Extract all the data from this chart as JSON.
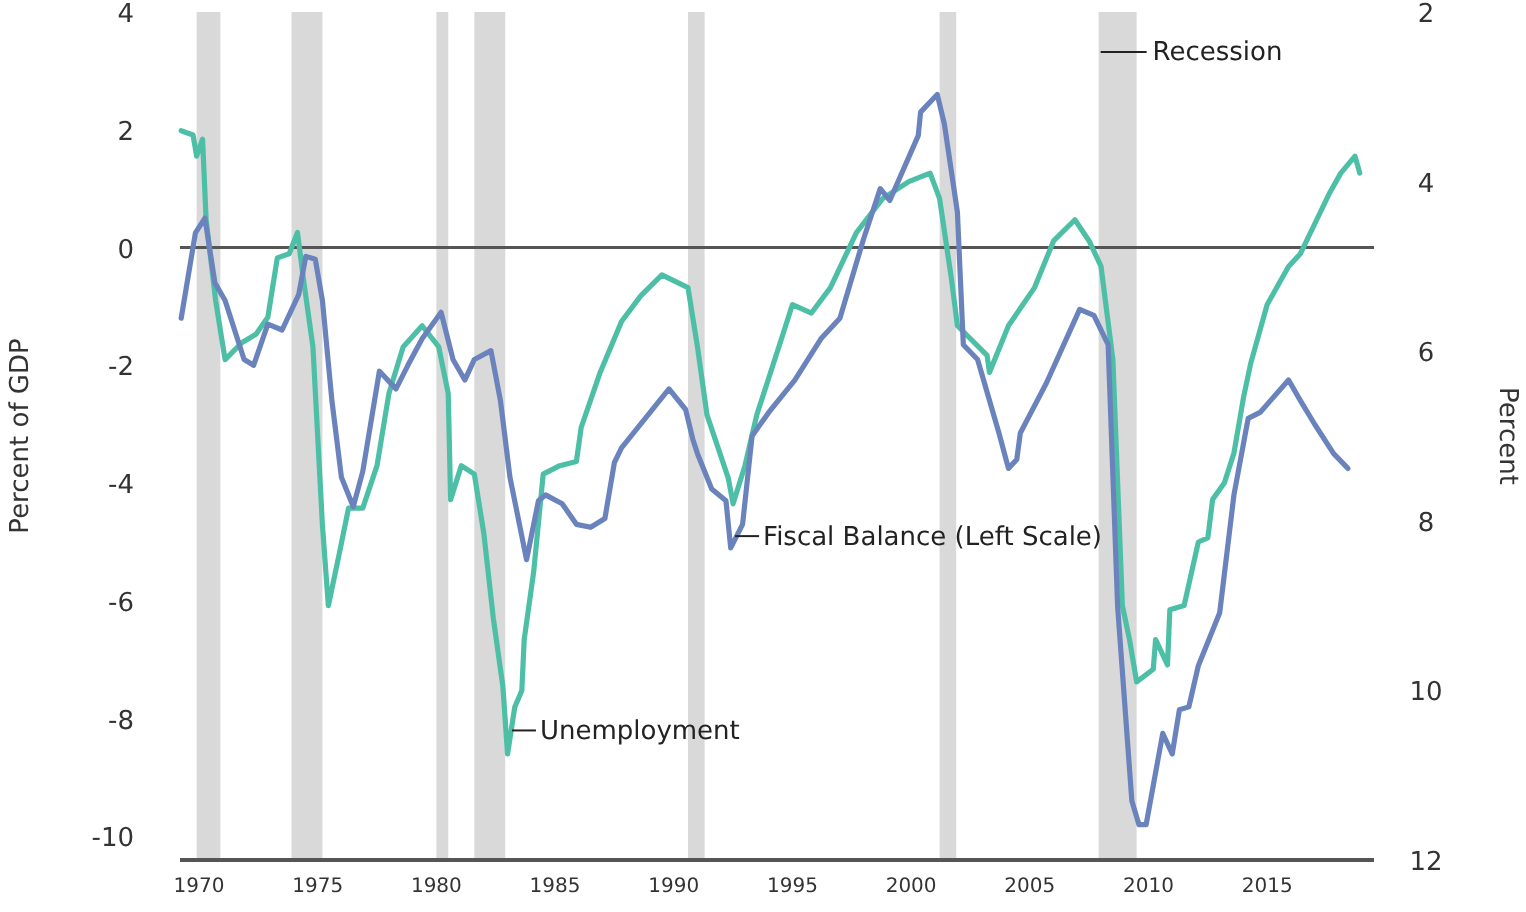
{
  "chart_data": {
    "type": "line",
    "ylabel": "Percent of GDP",
    "y2label": "Percent",
    "xlim": [
      1969.2,
      2019.5
    ],
    "xticks": [
      1970,
      1975,
      1980,
      1985,
      1990,
      1995,
      2000,
      2005,
      2010,
      2015
    ],
    "ylim": [
      -10.4,
      4
    ],
    "yticks": [
      -10,
      -8,
      -6,
      -4,
      -2,
      0,
      2,
      4
    ],
    "y2lim": [
      12,
      2
    ],
    "y2ticks": [
      2,
      4,
      6,
      8,
      10,
      12
    ],
    "series": [
      {
        "color": "#4dbfa7",
        "axis": "y2",
        "x": [
          1969.25,
          1969.75,
          1969.9,
          1970.15,
          1970.3,
          1970.7,
          1971.1,
          1971.8,
          1972.4,
          1972.9,
          1973.3,
          1973.8,
          1974.15,
          1974.4,
          1974.8,
          1975.2,
          1975.45,
          1975.9,
          1976.3,
          1976.9,
          1977.5,
          1978.0,
          1978.6,
          1979.4,
          1980.1,
          1980.5,
          1980.6,
          1981.05,
          1981.6,
          1982.0,
          1982.4,
          1982.8,
          1983.0,
          1983.3,
          1983.6,
          1983.7,
          1984.1,
          1984.5,
          1985.2,
          1985.9,
          1986.1,
          1986.9,
          1987.8,
          1988.6,
          1989.5,
          1990.6,
          1991.0,
          1991.4,
          1992.3,
          1992.5,
          1993.0,
          1993.5,
          1994.6,
          1995.0,
          1995.8,
          1996.6,
          1997.7,
          1998.8,
          1999.9,
          2000.8,
          2001.2,
          2001.7,
          2001.95,
          2003.2,
          2003.3,
          2004.1,
          2005.2,
          2006.0,
          2006.9,
          2007.5,
          2008.0,
          2008.5,
          2008.9,
          2009.2,
          2009.5,
          2010.2,
          2010.3,
          2010.8,
          2010.9,
          2011.5,
          2012.1,
          2012.5,
          2012.7,
          2013.2,
          2013.6,
          2014.0,
          2014.3,
          2015.0,
          2015.9,
          2016.4,
          2017.0,
          2017.6,
          2018.1,
          2018.7,
          2018.9
        ],
        "values": [
          3.4,
          3.45,
          3.7,
          3.5,
          4.45,
          5.4,
          6.1,
          5.9,
          5.8,
          5.6,
          4.9,
          4.85,
          4.6,
          5.15,
          5.95,
          8.05,
          9.0,
          8.4,
          7.85,
          7.85,
          7.35,
          6.5,
          5.95,
          5.7,
          5.95,
          6.5,
          7.75,
          7.35,
          7.45,
          8.15,
          9.15,
          9.95,
          10.75,
          10.2,
          10.0,
          9.4,
          8.6,
          7.45,
          7.35,
          7.3,
          6.9,
          6.25,
          5.65,
          5.35,
          5.1,
          5.25,
          5.95,
          6.75,
          7.5,
          7.8,
          7.35,
          6.75,
          5.8,
          5.45,
          5.55,
          5.25,
          4.6,
          4.2,
          4.0,
          3.9,
          4.2,
          5.15,
          5.7,
          6.05,
          6.25,
          5.7,
          5.25,
          4.7,
          4.45,
          4.7,
          5.0,
          6.1,
          9.0,
          9.4,
          9.9,
          9.75,
          9.4,
          9.7,
          9.05,
          9.0,
          8.25,
          8.2,
          7.75,
          7.55,
          7.2,
          6.55,
          6.15,
          5.45,
          5.0,
          4.85,
          4.5,
          4.15,
          3.9,
          3.7,
          3.9
        ]
      },
      {
        "color": "#6b83bd",
        "x": [
          1969.25,
          1969.85,
          1970.25,
          1970.67,
          1971.1,
          1971.9,
          1972.3,
          1972.9,
          1973.5,
          1974.2,
          1974.5,
          1974.9,
          1975.2,
          1975.6,
          1976.0,
          1976.5,
          1976.9,
          1977.6,
          1978.3,
          1978.8,
          1979.4,
          1980.2,
          1980.7,
          1981.2,
          1981.6,
          1982.3,
          1982.7,
          1983.1,
          1983.8,
          1984.3,
          1984.6,
          1985.3,
          1985.9,
          1986.5,
          1987.1,
          1987.5,
          1987.8,
          1988.8,
          1989.8,
          1990.5,
          1990.8,
          1991.0,
          1991.6,
          1992.2,
          1992.4,
          1992.9,
          1993.3,
          1994.0,
          1995.1,
          1996.2,
          1997.0,
          1998.0,
          1998.7,
          1999.1,
          2000.3,
          2000.4,
          2001.1,
          2001.4,
          2001.95,
          2002.2,
          2002.8,
          2003.7,
          2004.1,
          2004.45,
          2004.6,
          2005.7,
          2007.1,
          2007.7,
          2008.3,
          2008.7,
          2009.3,
          2009.6,
          2009.9,
          2010.6,
          2011.0,
          2011.3,
          2011.7,
          2012.1,
          2013.0,
          2013.6,
          2014.2,
          2014.7,
          2015.9,
          2016.4,
          2017.0,
          2017.8,
          2018.4
        ],
        "values": [
          -1.2,
          0.25,
          0.5,
          -0.6,
          -0.9,
          -1.9,
          -2.0,
          -1.3,
          -1.4,
          -0.8,
          -0.15,
          -0.2,
          -0.9,
          -2.6,
          -3.9,
          -4.4,
          -3.8,
          -2.1,
          -2.4,
          -2.0,
          -1.55,
          -1.1,
          -1.9,
          -2.25,
          -1.9,
          -1.75,
          -2.6,
          -3.9,
          -5.3,
          -4.3,
          -4.2,
          -4.35,
          -4.7,
          -4.75,
          -4.6,
          -3.65,
          -3.4,
          -2.9,
          -2.4,
          -2.75,
          -3.25,
          -3.5,
          -4.1,
          -4.3,
          -5.1,
          -4.7,
          -3.2,
          -2.8,
          -2.25,
          -1.55,
          -1.2,
          0.15,
          1.0,
          0.8,
          1.9,
          2.3,
          2.6,
          2.1,
          0.6,
          -1.65,
          -1.9,
          -3.15,
          -3.75,
          -3.6,
          -3.15,
          -2.3,
          -1.05,
          -1.15,
          -1.65,
          -6.1,
          -9.4,
          -9.8,
          -9.8,
          -8.25,
          -8.6,
          -7.85,
          -7.8,
          -7.1,
          -6.2,
          -4.2,
          -2.9,
          -2.8,
          -2.25,
          -2.6,
          -3.0,
          -3.5,
          -3.75
        ]
      }
    ],
    "ref_lines": [
      {
        "axis": "y",
        "value": 0,
        "color": "#555555"
      }
    ],
    "bands": [
      {
        "axis": "x",
        "from": 1969.9,
        "to": 1970.9,
        "color": "#d9d9d9"
      },
      {
        "axis": "x",
        "from": 1973.9,
        "to": 1975.2,
        "color": "#d9d9d9"
      },
      {
        "axis": "x",
        "from": 1980.0,
        "to": 1980.5,
        "color": "#d9d9d9"
      },
      {
        "axis": "x",
        "from": 1981.6,
        "to": 1982.9,
        "color": "#d9d9d9"
      },
      {
        "axis": "x",
        "from": 1990.6,
        "to": 1991.3,
        "color": "#d9d9d9"
      },
      {
        "axis": "x",
        "from": 2001.2,
        "to": 2001.9,
        "color": "#d9d9d9"
      },
      {
        "axis": "x",
        "from": 2007.9,
        "to": 2009.5,
        "color": "#d9d9d9",
        "label": "Recession"
      }
    ],
    "annotations": [
      {
        "text": "Unemployment",
        "x": 1983.1,
        "y": -8.2
      },
      {
        "text": "Fiscal Balance (Left Scale)",
        "x": 1992.5,
        "y": -4.9
      }
    ]
  }
}
